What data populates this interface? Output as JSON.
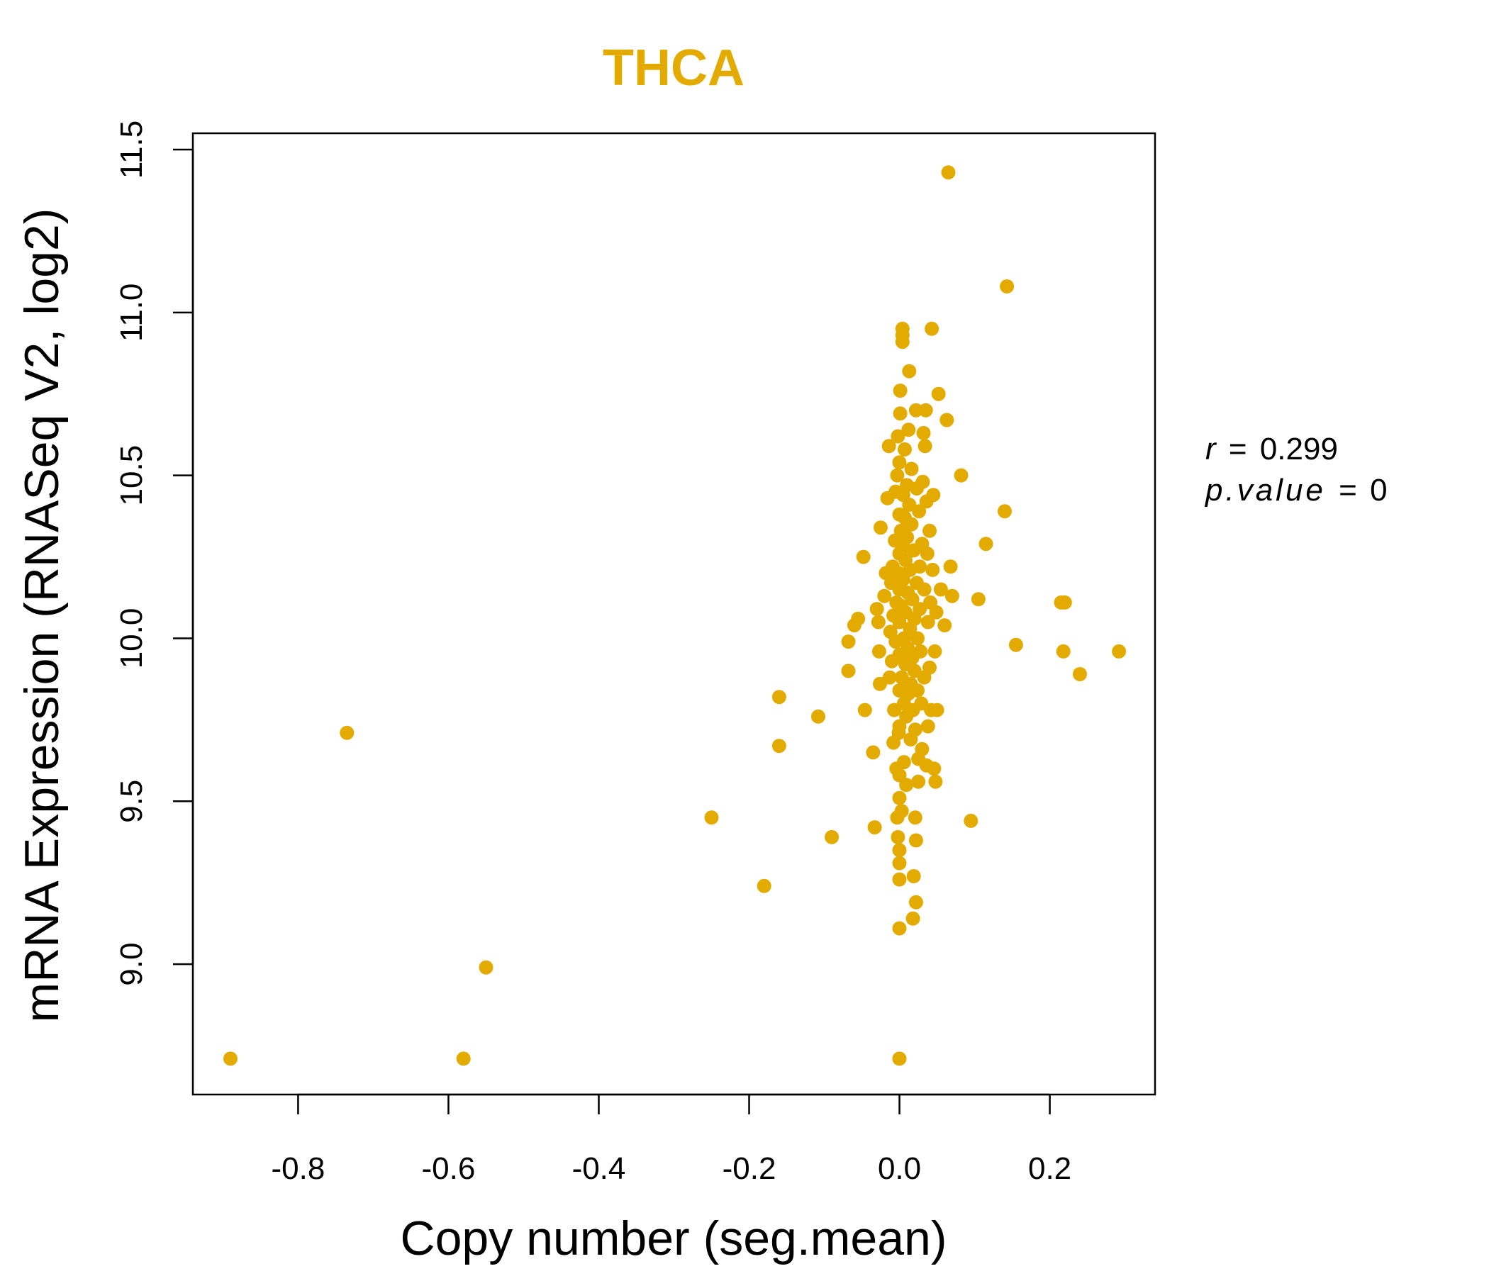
{
  "chart_data": {
    "type": "scatter",
    "title": "THCA",
    "xlabel": "Copy number (seg.mean)",
    "ylabel": "mRNA Expression (RNASeq V2, log2)",
    "xlim": [
      -0.94,
      0.34
    ],
    "ylim": [
      8.6,
      11.55
    ],
    "xticks": [
      "-0.8",
      "-0.6",
      "-0.4",
      "-0.2",
      "0.0",
      "0.2"
    ],
    "yticks": [
      "9.0",
      "9.5",
      "10.0",
      "10.5",
      "11.0",
      "11.5"
    ],
    "xtick_values": [
      -0.8,
      -0.6,
      -0.4,
      -0.2,
      0.0,
      0.2
    ],
    "ytick_values": [
      9.0,
      9.5,
      10.0,
      10.5,
      11.0,
      11.5
    ],
    "point_color": "#E3AA00",
    "title_color": "#E3AA00",
    "annotation": {
      "r_label": "r",
      "r_value": "0.299",
      "p_label": "p.value",
      "p_value": "0"
    },
    "points": [
      [
        -0.89,
        8.71
      ],
      [
        -0.735,
        9.71
      ],
      [
        -0.58,
        8.71
      ],
      [
        -0.55,
        8.99
      ],
      [
        -0.25,
        9.45
      ],
      [
        -0.18,
        9.24
      ],
      [
        -0.16,
        9.67
      ],
      [
        -0.16,
        9.82
      ],
      [
        -0.108,
        9.76
      ],
      [
        -0.09,
        9.39
      ],
      [
        -0.068,
        9.9
      ],
      [
        -0.068,
        9.99
      ],
      [
        -0.06,
        10.04
      ],
      [
        -0.055,
        10.06
      ],
      [
        -0.048,
        10.25
      ],
      [
        -0.046,
        9.78
      ],
      [
        -0.035,
        9.65
      ],
      [
        -0.033,
        9.42
      ],
      [
        -0.03,
        10.09
      ],
      [
        -0.028,
        10.05
      ],
      [
        -0.027,
        9.96
      ],
      [
        -0.026,
        9.86
      ],
      [
        -0.025,
        10.34
      ],
      [
        -0.02,
        10.13
      ],
      [
        -0.018,
        10.2
      ],
      [
        -0.016,
        10.43
      ],
      [
        -0.014,
        10.59
      ],
      [
        -0.013,
        9.88
      ],
      [
        -0.012,
        10.02
      ],
      [
        -0.011,
        10.17
      ],
      [
        -0.01,
        9.93
      ],
      [
        -0.009,
        10.22
      ],
      [
        -0.008,
        9.68
      ],
      [
        -0.008,
        10.07
      ],
      [
        -0.007,
        9.78
      ],
      [
        -0.006,
        10.3
      ],
      [
        -0.005,
        10.45
      ],
      [
        -0.005,
        9.99
      ],
      [
        -0.004,
        10.11
      ],
      [
        -0.004,
        9.6
      ],
      [
        -0.003,
        10.5
      ],
      [
        -0.003,
        9.45
      ],
      [
        -0.002,
        10.62
      ],
      [
        -0.002,
        9.39
      ],
      [
        -0.001,
        9.71
      ],
      [
        -0.001,
        10.2
      ],
      [
        0.0,
        9.35
      ],
      [
        0.0,
        9.31
      ],
      [
        0.0,
        9.26
      ],
      [
        0.0,
        9.11
      ],
      [
        0.0,
        8.71
      ],
      [
        0.0,
        10.54
      ],
      [
        0.0,
        10.38
      ],
      [
        0.0,
        10.26
      ],
      [
        0.0,
        10.15
      ],
      [
        0.0,
        10.05
      ],
      [
        0.0,
        9.95
      ],
      [
        0.0,
        9.84
      ],
      [
        0.0,
        9.73
      ],
      [
        0.0,
        9.58
      ],
      [
        0.0,
        9.51
      ],
      [
        0.001,
        10.69
      ],
      [
        0.001,
        10.76
      ],
      [
        0.002,
        10.33
      ],
      [
        0.002,
        10.1
      ],
      [
        0.003,
        9.88
      ],
      [
        0.003,
        9.47
      ],
      [
        0.004,
        10.91
      ],
      [
        0.004,
        10.93
      ],
      [
        0.004,
        10.95
      ],
      [
        0.005,
        10.44
      ],
      [
        0.005,
        10.28
      ],
      [
        0.005,
        10.18
      ],
      [
        0.006,
        10.0
      ],
      [
        0.006,
        9.8
      ],
      [
        0.006,
        9.62
      ],
      [
        0.007,
        10.58
      ],
      [
        0.007,
        10.37
      ],
      [
        0.008,
        10.24
      ],
      [
        0.008,
        10.08
      ],
      [
        0.008,
        9.92
      ],
      [
        0.009,
        9.76
      ],
      [
        0.009,
        9.55
      ],
      [
        0.01,
        10.47
      ],
      [
        0.01,
        10.31
      ],
      [
        0.011,
        10.14
      ],
      [
        0.011,
        9.97
      ],
      [
        0.012,
        9.83
      ],
      [
        0.012,
        10.64
      ],
      [
        0.013,
        10.82
      ],
      [
        0.013,
        10.41
      ],
      [
        0.014,
        10.21
      ],
      [
        0.014,
        10.03
      ],
      [
        0.015,
        9.86
      ],
      [
        0.015,
        9.69
      ],
      [
        0.016,
        10.52
      ],
      [
        0.016,
        10.35
      ],
      [
        0.017,
        10.12
      ],
      [
        0.017,
        9.94
      ],
      [
        0.018,
        9.78
      ],
      [
        0.018,
        9.14
      ],
      [
        0.019,
        9.27
      ],
      [
        0.019,
        10.27
      ],
      [
        0.02,
        10.06
      ],
      [
        0.02,
        9.9
      ],
      [
        0.021,
        9.72
      ],
      [
        0.021,
        9.45
      ],
      [
        0.022,
        9.19
      ],
      [
        0.022,
        9.38
      ],
      [
        0.022,
        10.7
      ],
      [
        0.023,
        10.46
      ],
      [
        0.023,
        10.17
      ],
      [
        0.024,
        10.0
      ],
      [
        0.024,
        9.84
      ],
      [
        0.025,
        9.63
      ],
      [
        0.025,
        9.56
      ],
      [
        0.026,
        10.39
      ],
      [
        0.027,
        10.22
      ],
      [
        0.027,
        10.09
      ],
      [
        0.028,
        9.96
      ],
      [
        0.029,
        9.8
      ],
      [
        0.03,
        9.66
      ],
      [
        0.03,
        10.29
      ],
      [
        0.031,
        10.48
      ],
      [
        0.032,
        10.63
      ],
      [
        0.033,
        10.15
      ],
      [
        0.033,
        9.88
      ],
      [
        0.034,
        10.59
      ],
      [
        0.035,
        10.7
      ],
      [
        0.036,
        10.42
      ],
      [
        0.036,
        9.61
      ],
      [
        0.037,
        10.26
      ],
      [
        0.038,
        10.05
      ],
      [
        0.038,
        9.73
      ],
      [
        0.04,
        10.33
      ],
      [
        0.04,
        9.91
      ],
      [
        0.041,
        10.11
      ],
      [
        0.042,
        9.78
      ],
      [
        0.043,
        10.95
      ],
      [
        0.044,
        10.21
      ],
      [
        0.045,
        10.44
      ],
      [
        0.046,
        9.6
      ],
      [
        0.047,
        9.96
      ],
      [
        0.048,
        9.56
      ],
      [
        0.049,
        10.08
      ],
      [
        0.05,
        9.78
      ],
      [
        0.052,
        10.75
      ],
      [
        0.055,
        10.15
      ],
      [
        0.06,
        10.04
      ],
      [
        0.063,
        10.67
      ],
      [
        0.065,
        11.43
      ],
      [
        0.068,
        10.22
      ],
      [
        0.07,
        10.13
      ],
      [
        0.082,
        10.5
      ],
      [
        0.095,
        9.44
      ],
      [
        0.105,
        10.12
      ],
      [
        0.115,
        10.29
      ],
      [
        0.14,
        10.39
      ],
      [
        0.143,
        11.08
      ],
      [
        0.155,
        9.98
      ],
      [
        0.215,
        10.11
      ],
      [
        0.22,
        10.11
      ],
      [
        0.218,
        9.96
      ],
      [
        0.24,
        9.89
      ],
      [
        0.292,
        9.96
      ]
    ]
  }
}
